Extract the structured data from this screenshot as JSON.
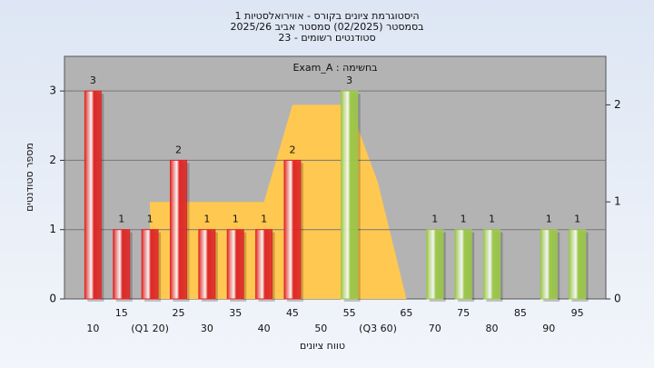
{
  "chart_data": {
    "type": "bar",
    "title": [
      "היסטוגרמת ציונים בקורס - אווירואלסטיות 1",
      "בסמסטר (02/2025) סמסטר אביב 2025/26",
      "סטודנטים רשומים - 23"
    ],
    "annotation": "Exam_A : בחשימה",
    "x_label": "טווח ציונים",
    "y_label": "מספר סטודנטים",
    "categories": [
      "10",
      "15",
      "(Q1 20)",
      "25",
      "30",
      "35",
      "40",
      "45",
      "50",
      "55",
      "(Q3 60)",
      "65",
      "70",
      "75",
      "80",
      "85",
      "90",
      "95"
    ],
    "values": [
      3,
      1,
      1,
      2,
      1,
      1,
      1,
      2,
      0,
      3,
      0,
      0,
      1,
      1,
      1,
      0,
      1,
      1
    ],
    "colors": [
      "#e02828",
      "#e02828",
      "#e02828",
      "#e02828",
      "#e02828",
      "#e02828",
      "#e02828",
      "#e02828",
      "#e02828",
      "#9cc84a",
      "#9cc84a",
      "#9cc84a",
      "#9cc84a",
      "#9cc84a",
      "#9cc84a",
      "#9cc84a",
      "#9cc84a",
      "#9cc84a"
    ],
    "area": {
      "color": "#ffc850",
      "axis": "y2",
      "values": [
        null,
        null,
        1,
        1,
        1,
        1,
        1,
        2,
        2,
        2,
        1.2,
        0,
        null,
        null,
        null,
        null,
        null,
        null
      ]
    },
    "ylim": [
      0,
      3.5
    ],
    "yticks": [
      0,
      1,
      2,
      3
    ],
    "y2lim": [
      0,
      2.5
    ],
    "y2ticks": [
      0,
      1,
      2
    ],
    "grid": true
  }
}
